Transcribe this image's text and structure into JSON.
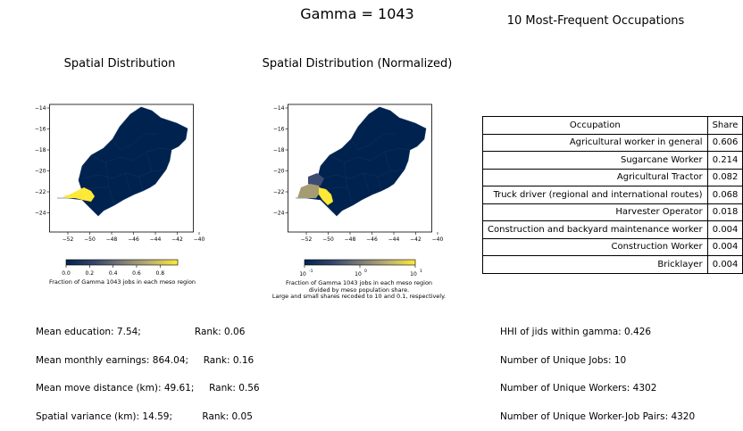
{
  "suptitle": "Gamma = 1043",
  "panel1": {
    "title": "Spatial Distribution",
    "colorbar_label": "Fraction of Gamma 1043 jobs in each meso region",
    "colorbar_ticks": [
      "0.0",
      "0.2",
      "0.4",
      "0.6",
      "0.8"
    ]
  },
  "panel2": {
    "title": "Spatial Distribution (Normalized)",
    "colorbar_label_lines": [
      "Fraction of Gamma 1043 jobs in each meso region",
      "divided by meso population share.",
      "Large and small shares recoded to 10 and 0.1, respectively."
    ],
    "colorbar_ticks": [
      "10",
      "10",
      "10"
    ],
    "colorbar_tick_exponents": [
      "-1",
      "0",
      "1"
    ]
  },
  "map_axes": {
    "x_ticks": [
      "−52",
      "−50",
      "−48",
      "−46",
      "−44",
      "−42",
      "−40"
    ],
    "y_ticks": [
      "−14",
      "−16",
      "−18",
      "−20",
      "−22",
      "−24"
    ]
  },
  "table": {
    "title": "10 Most-Frequent Occupations",
    "header": [
      "Occupation",
      "Share"
    ],
    "rows": [
      {
        "occupation": "Agricultural worker in general",
        "share": "0.606"
      },
      {
        "occupation": "Sugarcane Worker",
        "share": "0.214"
      },
      {
        "occupation": "Agricultural Tractor",
        "share": "0.082"
      },
      {
        "occupation": "Truck driver (regional and international routes)",
        "share": "0.068"
      },
      {
        "occupation": "Harvester Operator",
        "share": "0.018"
      },
      {
        "occupation": "Construction and backyard maintenance worker",
        "share": "0.004"
      },
      {
        "occupation": "Construction Worker",
        "share": "0.004"
      },
      {
        "occupation": "Bricklayer",
        "share": "0.004"
      }
    ]
  },
  "stats_left": [
    "Mean education: 7.54;                  Rank: 0.06",
    "Mean monthly earnings: 864.04;     Rank: 0.16",
    "Mean move distance (km): 49.61;     Rank: 0.56",
    "Spatial variance (km): 14.59;          Rank: 0.05"
  ],
  "stats_right": [
    "HHI of jids within gamma: 0.426",
    "Number of Unique Jobs: 10",
    "Number of Unique Workers: 4302",
    "Number of Unique Worker-Job Pairs: 4320"
  ],
  "colors": {
    "cmap_low": "#00224e",
    "cmap_mid": "#7c7b78",
    "cmap_high": "#fee838",
    "map_fill": "#00224e",
    "border": "#1a3a6a"
  }
}
